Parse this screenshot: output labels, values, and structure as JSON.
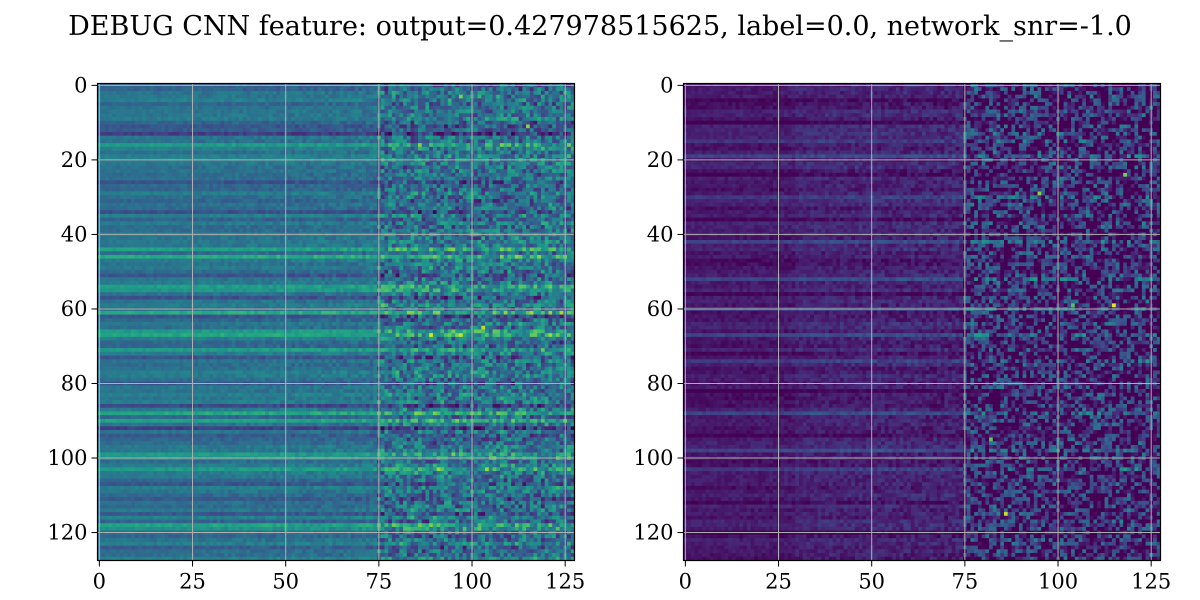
{
  "chart_data": {
    "type": "heatmap",
    "title": "DEBUG CNN feature: output=0.427978515625, label=0.0, network_snr=-1.0",
    "colormap": "viridis",
    "grid": true,
    "image_size": [
      128,
      128
    ],
    "xlim": [
      -0.5,
      127.5
    ],
    "ylim": [
      127.5,
      -0.5
    ],
    "xticks": [
      0,
      25,
      50,
      75,
      100,
      125
    ],
    "yticks": [
      0,
      20,
      40,
      60,
      80,
      100,
      120
    ],
    "panels": [
      {
        "id": "left",
        "description_hidden": true,
        "base_level": 0.38,
        "noise_level": 0.22,
        "transition_column": 75,
        "row_bright_rows": [
          16,
          44,
          46,
          54,
          55,
          61,
          66,
          67,
          71,
          88,
          90,
          99,
          100,
          103,
          118,
          119
        ],
        "row_dark_rows": [
          11,
          12,
          13,
          26,
          34,
          51,
          57,
          62,
          73,
          80,
          86,
          92,
          94,
          107,
          111,
          115,
          124
        ],
        "hot_spots": [
          [
            67,
            89,
            0.95
          ],
          [
            67,
            97,
            0.92
          ],
          [
            65,
            103,
            0.9
          ],
          [
            103,
            91,
            0.85
          ],
          [
            103,
            104,
            0.85
          ],
          [
            61,
            84,
            0.8
          ],
          [
            11,
            115,
            0.82
          ],
          [
            3,
            97,
            0.8
          ],
          [
            59,
            76,
            0.75
          ]
        ]
      },
      {
        "id": "right",
        "base_level": 0.1,
        "noise_level": 0.3,
        "transition_column": 75,
        "row_bright_rows": [
          15,
          19,
          30,
          42,
          52,
          60,
          67,
          74,
          88,
          98,
          103
        ],
        "row_dark_rows": [
          4,
          10,
          24,
          36,
          47,
          56,
          72,
          82,
          94,
          112,
          120
        ],
        "hot_spots": [
          [
            59,
            115,
            0.98
          ],
          [
            115,
            86,
            0.92
          ],
          [
            29,
            95,
            0.82
          ],
          [
            24,
            118,
            0.8
          ],
          [
            95,
            82,
            0.75
          ],
          [
            59,
            104,
            0.72
          ]
        ]
      }
    ]
  }
}
